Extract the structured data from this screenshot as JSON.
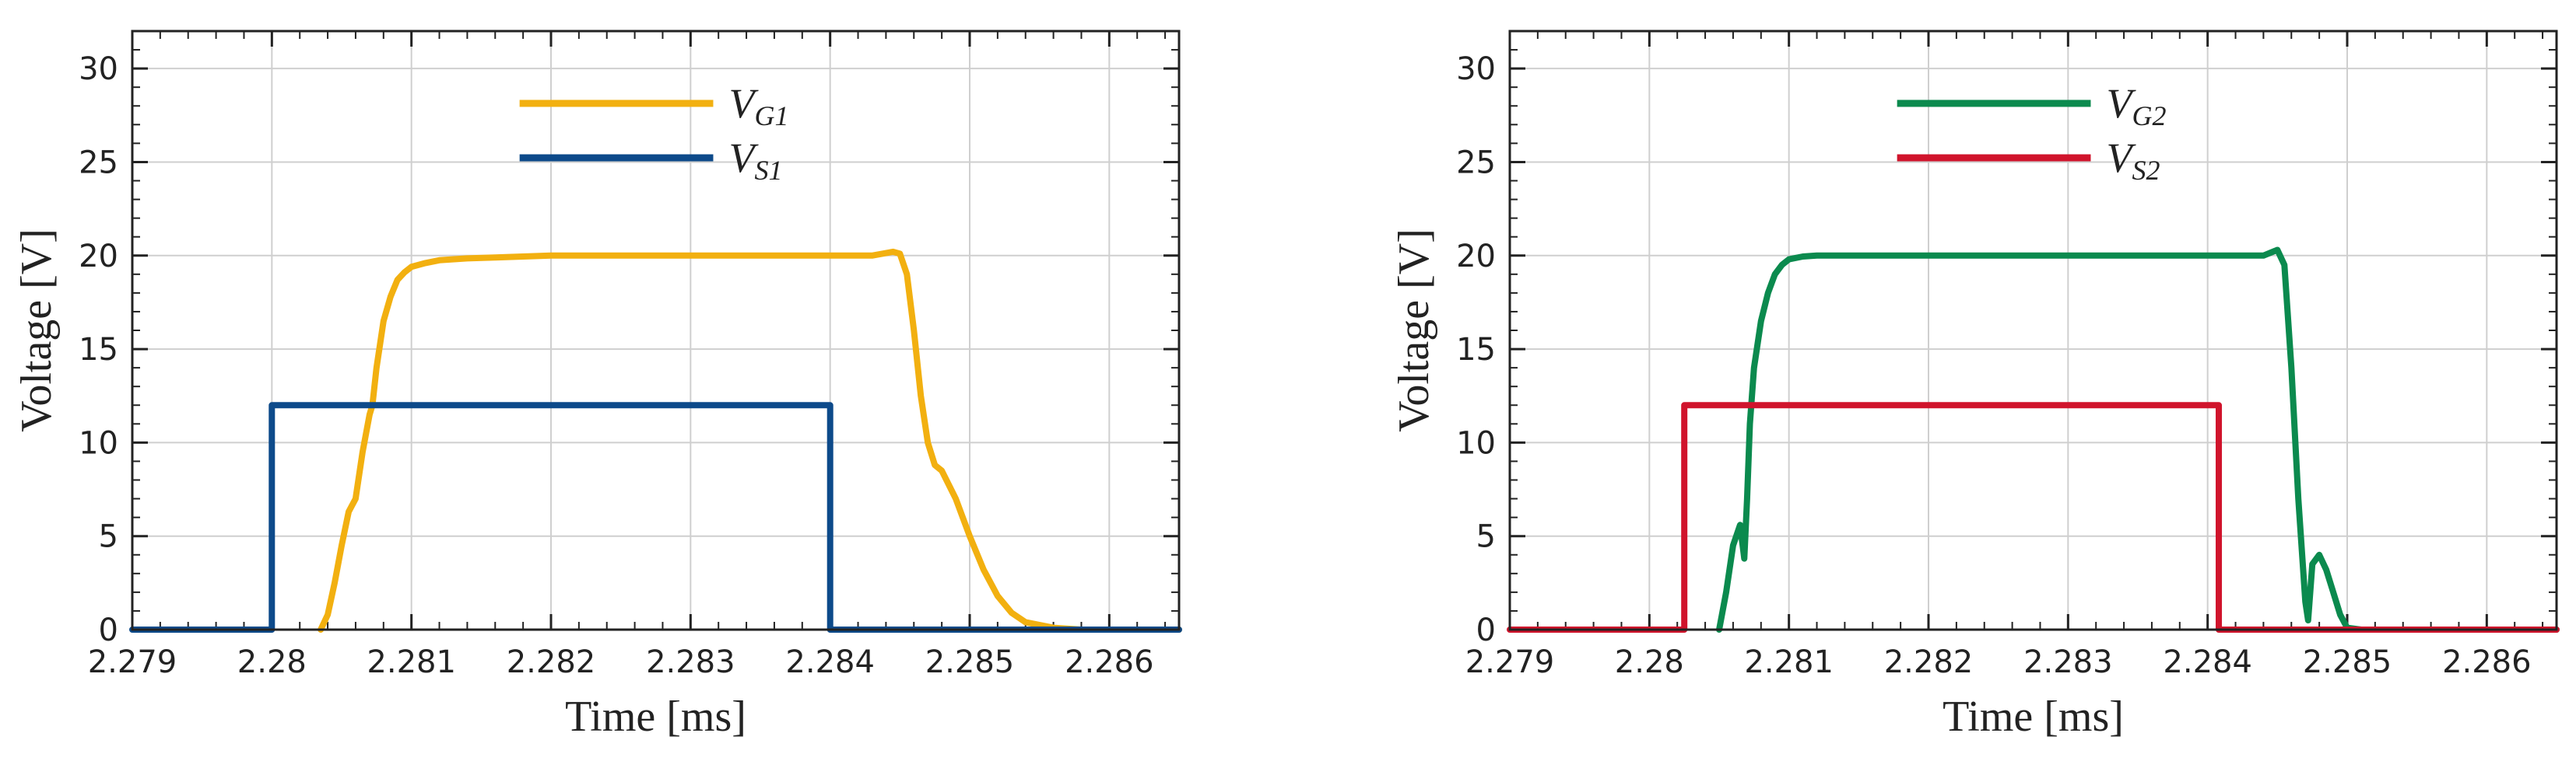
{
  "chart_data": [
    {
      "type": "line",
      "xlabel": "Time [ms]",
      "ylabel": "Voltage [V]",
      "xlim": [
        2.279,
        2.2865
      ],
      "ylim": [
        0,
        32
      ],
      "xticks": [
        2.279,
        2.28,
        2.281,
        2.282,
        2.283,
        2.284,
        2.285,
        2.286
      ],
      "xtick_labels": [
        "2.279",
        "2.28",
        "2.281",
        "2.282",
        "2.283",
        "2.284",
        "2.285",
        "2.286"
      ],
      "yticks": [
        0,
        5,
        10,
        15,
        20,
        25,
        30
      ],
      "ytick_labels": [
        "0",
        "5",
        "10",
        "15",
        "20",
        "25",
        "30"
      ],
      "grid": true,
      "legend_position": "top-center",
      "series": [
        {
          "name": "V",
          "name_sub": "G1",
          "color": "#F2B010",
          "x": [
            2.28035,
            2.2804,
            2.28045,
            2.2805,
            2.28055,
            2.2806,
            2.28065,
            2.2807,
            2.28072,
            2.28075,
            2.2808,
            2.28085,
            2.2809,
            2.28095,
            2.281,
            2.2811,
            2.2812,
            2.2814,
            2.2816,
            2.2818,
            2.282,
            2.2825,
            2.283,
            2.284,
            2.2843,
            2.28445,
            2.2845,
            2.28455,
            2.2846,
            2.28465,
            2.2847,
            2.28475,
            2.2848,
            2.2849,
            2.285,
            2.2851,
            2.2852,
            2.2853,
            2.2854,
            2.2856,
            2.2858,
            2.2865
          ],
          "y": [
            0,
            0.8,
            2.5,
            4.5,
            6.3,
            7.0,
            9.5,
            11.5,
            12.0,
            14.0,
            16.5,
            17.8,
            18.7,
            19.1,
            19.4,
            19.6,
            19.75,
            19.85,
            19.9,
            19.95,
            20.0,
            20.0,
            20.0,
            20.0,
            20.0,
            20.2,
            20.1,
            19.0,
            16.0,
            12.5,
            10.0,
            8.8,
            8.5,
            7.0,
            5.0,
            3.2,
            1.8,
            0.9,
            0.4,
            0.1,
            0.0,
            0.0
          ]
        },
        {
          "name": "V",
          "name_sub": "S1",
          "color": "#0D4A8A",
          "x": [
            2.279,
            2.28,
            2.28,
            2.284,
            2.284,
            2.2865
          ],
          "y": [
            0,
            0,
            12,
            12,
            0,
            0
          ]
        }
      ]
    },
    {
      "type": "line",
      "xlabel": "Time [ms]",
      "ylabel": "Voltage [V]",
      "xlim": [
        2.279,
        2.2865
      ],
      "ylim": [
        0,
        32
      ],
      "xticks": [
        2.279,
        2.28,
        2.281,
        2.282,
        2.283,
        2.284,
        2.285,
        2.286
      ],
      "xtick_labels": [
        "2.279",
        "2.28",
        "2.281",
        "2.282",
        "2.283",
        "2.284",
        "2.285",
        "2.286"
      ],
      "yticks": [
        0,
        5,
        10,
        15,
        20,
        25,
        30
      ],
      "ytick_labels": [
        "0",
        "5",
        "10",
        "15",
        "20",
        "25",
        "30"
      ],
      "grid": true,
      "legend_position": "top-center",
      "series": [
        {
          "name": "V",
          "name_sub": "G2",
          "color": "#0B8A4E",
          "x": [
            2.2805,
            2.28055,
            2.2806,
            2.28065,
            2.28068,
            2.2807,
            2.28072,
            2.28075,
            2.2808,
            2.28085,
            2.2809,
            2.28095,
            2.281,
            2.2811,
            2.2812,
            2.2815,
            2.282,
            2.283,
            2.284,
            2.2844,
            2.2845,
            2.28455,
            2.2846,
            2.28465,
            2.2847,
            2.28472,
            2.28475,
            2.2848,
            2.28485,
            2.2849,
            2.28495,
            2.285,
            2.2851,
            2.2865
          ],
          "y": [
            0,
            2.0,
            4.5,
            5.6,
            3.8,
            7.0,
            11.0,
            14.0,
            16.5,
            18.0,
            19.0,
            19.5,
            19.8,
            19.95,
            20.0,
            20.0,
            20.0,
            20.0,
            20.0,
            20.0,
            20.3,
            19.5,
            14.0,
            7.0,
            1.5,
            0.5,
            3.5,
            4.0,
            3.2,
            2.0,
            0.8,
            0.1,
            0.0,
            0.0
          ]
        },
        {
          "name": "V",
          "name_sub": "S2",
          "color": "#D0142C",
          "x": [
            2.279,
            2.28025,
            2.28025,
            2.28408,
            2.28408,
            2.2865
          ],
          "y": [
            0,
            0,
            12,
            12,
            0,
            0
          ]
        }
      ]
    }
  ]
}
